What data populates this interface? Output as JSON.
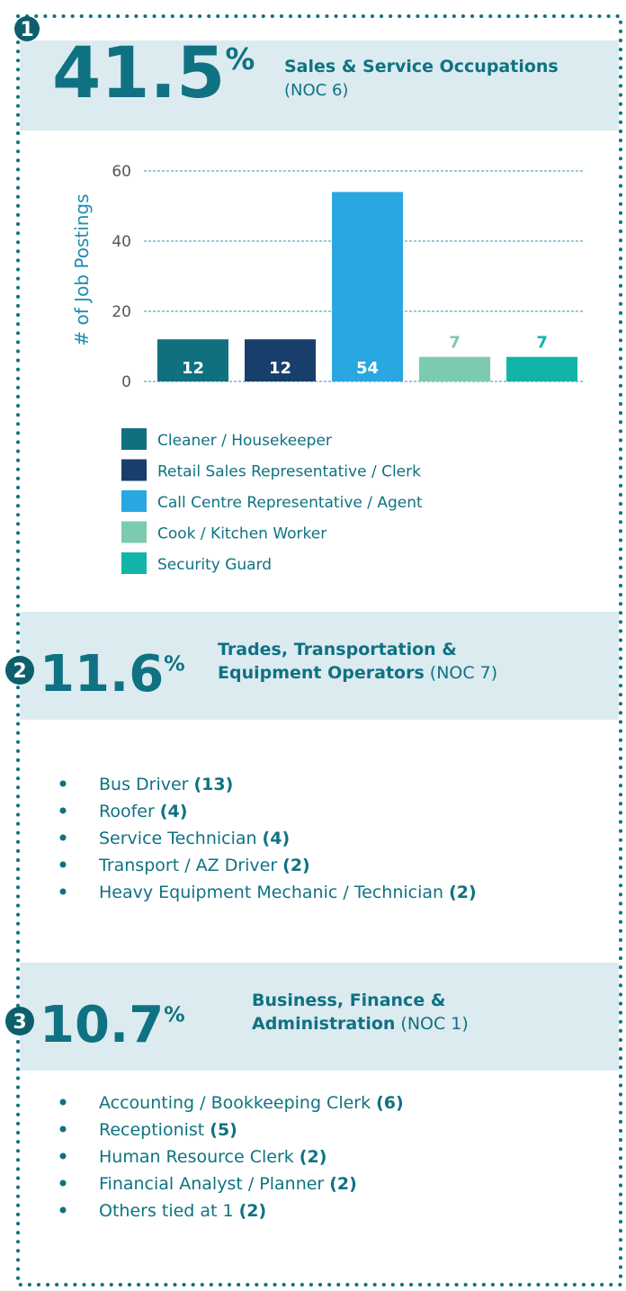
{
  "sections": [
    {
      "number": "1",
      "percent": "41.5",
      "percent_symbol": "%",
      "title_lines": [
        "Sales & Service Occupations"
      ],
      "noc": "(NOC 6)"
    },
    {
      "number": "2",
      "percent": "11.6",
      "percent_symbol": "%",
      "title_lines": [
        "Trades, Transportation &",
        "Equipment Operators"
      ],
      "noc": "(NOC 7)",
      "items": [
        {
          "name": "Bus Driver",
          "count": "(13)"
        },
        {
          "name": "Roofer",
          "count": "(4)"
        },
        {
          "name": "Service Technician",
          "count": "(4)"
        },
        {
          "name": "Transport / AZ Driver",
          "count": "(2)"
        },
        {
          "name": "Heavy Equipment Mechanic / Technician",
          "count": "(2)"
        }
      ]
    },
    {
      "number": "3",
      "percent": "10.7",
      "percent_symbol": "%",
      "title_lines": [
        "Business, Finance &",
        "Administration"
      ],
      "noc": "(NOC 1)",
      "items": [
        {
          "name": "Accounting / Bookkeeping Clerk",
          "count": "(6)"
        },
        {
          "name": "Receptionist",
          "count": "(5)"
        },
        {
          "name": "Human Resource Clerk",
          "count": "(2)"
        },
        {
          "name": "Financial Analyst / Planner",
          "count": "(2)"
        },
        {
          "name": "Others tied at 1",
          "count": "(2)"
        }
      ]
    }
  ],
  "chart_data": {
    "type": "bar",
    "y_label": "# of Job Postings",
    "categories": [
      "Cleaner / Housekeeper",
      "Retail Sales Representative / Clerk",
      "Call Centre Representative / Agent",
      "Cook / Kitchen Worker",
      "Security Guard"
    ],
    "values": [
      12,
      12,
      54,
      7,
      7
    ],
    "colors": [
      "#10707f",
      "#183e6b",
      "#29a7e1",
      "#7ccbae",
      "#12b4a8"
    ],
    "ylim": [
      0,
      60
    ],
    "yticks": [
      0,
      20,
      40,
      60
    ],
    "grid": true
  }
}
